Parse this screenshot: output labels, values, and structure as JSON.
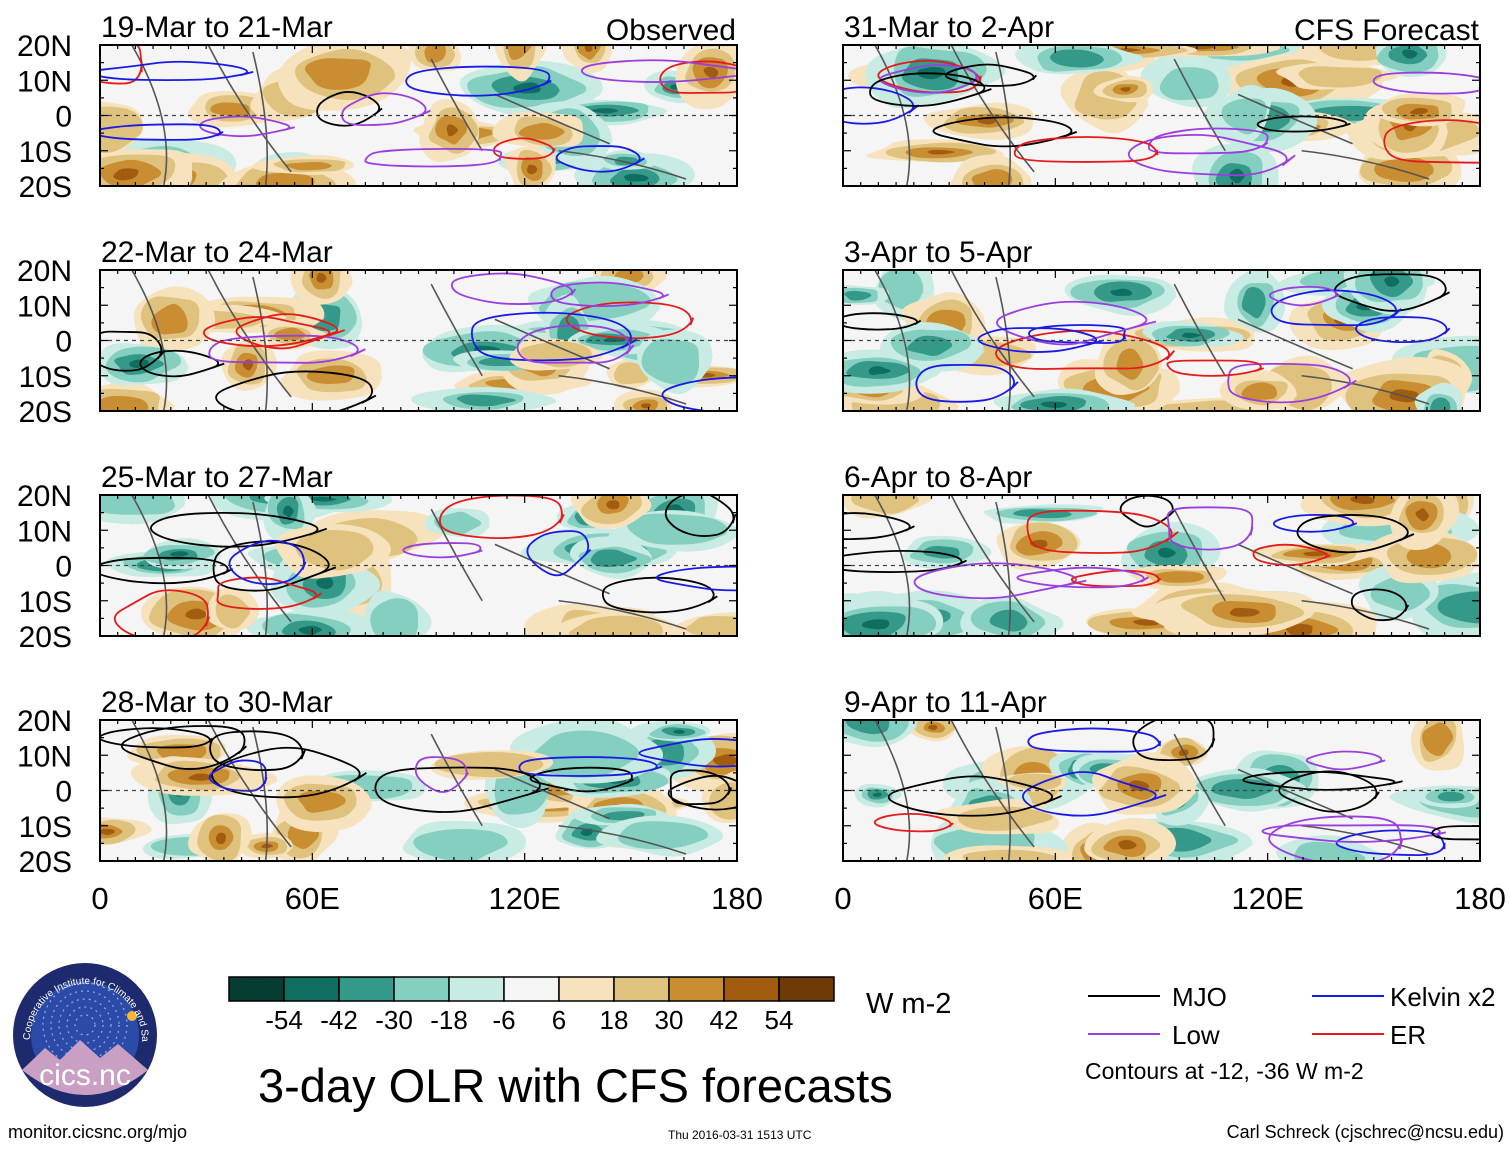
{
  "title": "3-day OLR with CFS forecasts",
  "colorbar": {
    "units": "W m-2",
    "labels": [
      "-54",
      "-42",
      "-30",
      "-18",
      "-6",
      "6",
      "18",
      "30",
      "42",
      "54"
    ],
    "colors": [
      "#053d32",
      "#0f6e60",
      "#35998a",
      "#84cfc0",
      "#c8ebe3",
      "#f5f5f5",
      "#f6e3bd",
      "#e0c27f",
      "#c98d32",
      "#a25c0f",
      "#6e3a07"
    ]
  },
  "columns": {
    "left_label": "Observed",
    "right_label": "CFS Forecast"
  },
  "axes": {
    "lat_ticks": [
      "20N",
      "10N",
      "0",
      "10S",
      "20S"
    ],
    "lon_ticks": [
      "0",
      "60E",
      "120E",
      "180"
    ]
  },
  "chart_data": {
    "type": "heatmap",
    "variable": "3-day OLR anomaly",
    "units": "W m-2",
    "xlim": [
      0,
      180
    ],
    "ylim": [
      -20,
      20
    ],
    "xlabel": "",
    "ylabel": "",
    "contour_levels": [
      -12,
      -36
    ],
    "panels": [
      {
        "period": "19-Mar to 21-Mar",
        "source": "Observed"
      },
      {
        "period": "22-Mar to 24-Mar",
        "source": "Observed"
      },
      {
        "period": "25-Mar to 27-Mar",
        "source": "Observed"
      },
      {
        "period": "28-Mar to 30-Mar",
        "source": "Observed"
      },
      {
        "period": "31-Mar to 2-Apr",
        "source": "CFS Forecast"
      },
      {
        "period": "3-Apr to 5-Apr",
        "source": "CFS Forecast"
      },
      {
        "period": "6-Apr to 8-Apr",
        "source": "CFS Forecast"
      },
      {
        "period": "9-Apr to 11-Apr",
        "source": "CFS Forecast"
      }
    ]
  },
  "legend": {
    "items": [
      {
        "label": "MJO",
        "color": "#000000"
      },
      {
        "label": "Kelvin x2",
        "color": "#1a1ae6"
      },
      {
        "label": "Low",
        "color": "#9a3ee0"
      },
      {
        "label": "ER",
        "color": "#e61a1a"
      }
    ],
    "note": "Contours at -12, -36 W m-2"
  },
  "logo": {
    "text": "cics.nc",
    "ring_text": "Cooperative Institute for Climate and Satellites"
  },
  "footer": {
    "left": "monitor.cicsnc.org/mjo",
    "center": "Thu 2016-03-31 1513 UTC",
    "right": "Carl Schreck (cjschrec@ncsu.edu)"
  }
}
